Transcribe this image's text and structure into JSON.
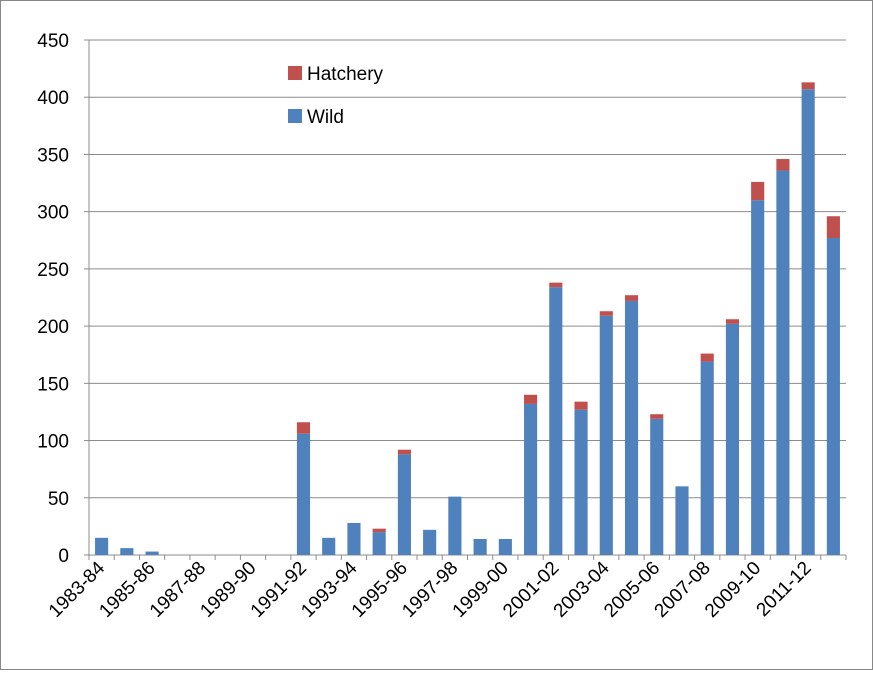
{
  "chart_data": {
    "type": "stacked_bar",
    "categories": [
      "1983-84",
      null,
      "1985-86",
      null,
      "1987-88",
      null,
      "1989-90",
      null,
      "1991-92",
      null,
      "1993-94",
      null,
      "1995-96",
      null,
      "1997-98",
      null,
      "1999-00",
      null,
      "2001-02",
      null,
      "2003-04",
      null,
      "2005-06",
      null,
      "2007-08",
      null,
      "2009-10",
      null,
      "2011-12",
      null
    ],
    "series": [
      {
        "name": "Wild",
        "color": "#4f81bd",
        "values": [
          15,
          6,
          3,
          0,
          0,
          0,
          0,
          0,
          106,
          15,
          28,
          20,
          88,
          22,
          51,
          14,
          14,
          132,
          234,
          127,
          209,
          222,
          119,
          60,
          169,
          202,
          310,
          336,
          407,
          277
        ]
      },
      {
        "name": "Hatchery",
        "color": "#c0504d",
        "values": [
          0,
          0,
          0,
          0,
          0,
          0,
          0,
          0,
          10,
          0,
          0,
          3,
          4,
          0,
          0,
          0,
          0,
          8,
          4,
          7,
          4,
          5,
          4,
          0,
          7,
          4,
          16,
          10,
          6,
          19
        ]
      }
    ],
    "ylim": [
      0,
      450
    ],
    "yticks": [
      0,
      50,
      100,
      150,
      200,
      250,
      300,
      350,
      400,
      450
    ],
    "grid": true
  }
}
